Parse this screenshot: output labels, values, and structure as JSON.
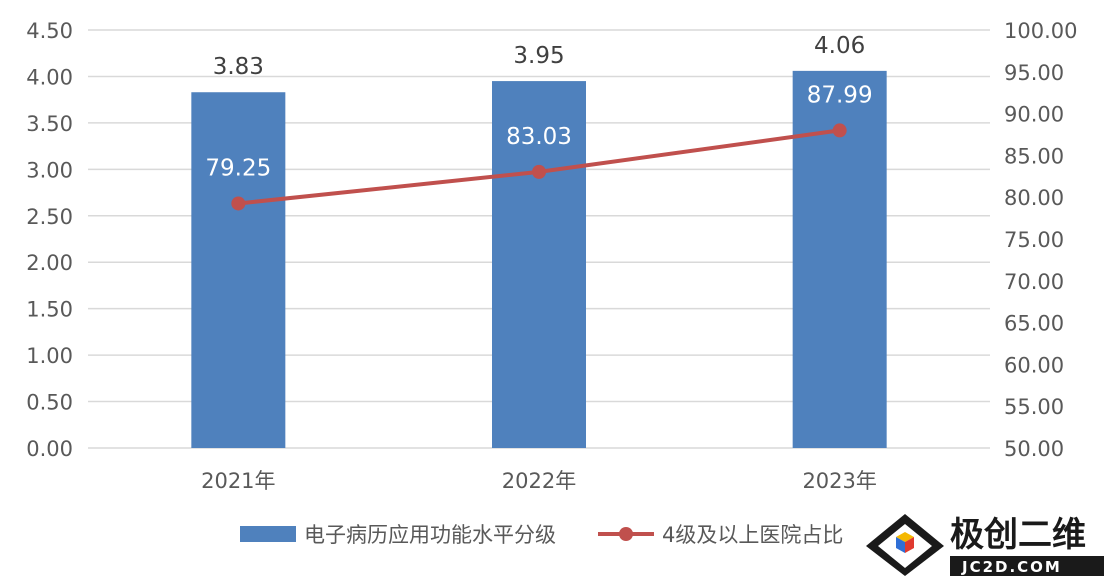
{
  "chart_data": {
    "type": "bar",
    "categories": [
      "2021年",
      "2022年",
      "2023年"
    ],
    "series": [
      {
        "name": "电子病历应用功能水平分级",
        "type": "bar",
        "axis": "left",
        "values": [
          3.83,
          3.95,
          4.06
        ],
        "labels": [
          "3.83",
          "3.95",
          "4.06"
        ],
        "color": "#4f81bd"
      },
      {
        "name": "4级及以上医院占比",
        "type": "line",
        "axis": "right",
        "values": [
          79.25,
          83.03,
          87.99
        ],
        "labels": [
          "79.25",
          "83.03",
          "87.99"
        ],
        "color": "#c0504d"
      }
    ],
    "y_left": {
      "lim": [
        0,
        4.5
      ],
      "ticks": [
        "0.00",
        "0.50",
        "1.00",
        "1.50",
        "2.00",
        "2.50",
        "3.00",
        "3.50",
        "4.00",
        "4.50"
      ]
    },
    "y_right": {
      "lim": [
        50,
        100
      ],
      "ticks": [
        "50.00",
        "55.00",
        "60.00",
        "65.00",
        "70.00",
        "75.00",
        "80.00",
        "85.00",
        "90.00",
        "95.00",
        "100.00"
      ]
    },
    "grid": true,
    "legend": "bottom"
  },
  "watermark": {
    "title": "极创二维",
    "subtitle": "JC2D.COM"
  }
}
